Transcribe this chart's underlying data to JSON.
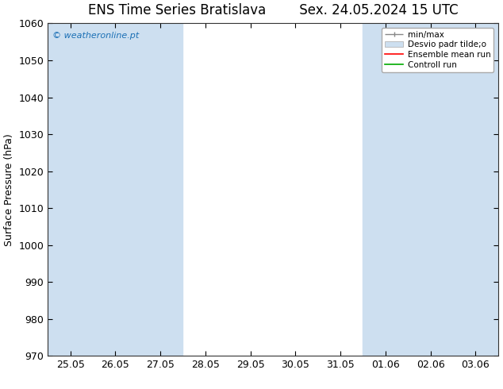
{
  "title_left": "ENS Time Series Bratislava",
  "title_right": "Sex. 24.05.2024 15 UTC",
  "ylabel": "Surface Pressure (hPa)",
  "ylim": [
    970,
    1060
  ],
  "yticks": [
    970,
    980,
    990,
    1000,
    1010,
    1020,
    1030,
    1040,
    1050,
    1060
  ],
  "xtick_labels": [
    "25.05",
    "26.05",
    "27.05",
    "28.05",
    "29.05",
    "30.05",
    "31.05",
    "01.06",
    "02.06",
    "03.06"
  ],
  "xtick_positions": [
    0,
    1,
    2,
    3,
    4,
    5,
    6,
    7,
    8,
    9
  ],
  "xlim": [
    -0.5,
    9.5
  ],
  "watermark": "© weatheronline.pt",
  "legend_labels": [
    "min/max",
    "Desvio padr tilde;o",
    "Ensemble mean run",
    "Controll run"
  ],
  "shaded_bands": [
    [
      0,
      1,
      2
    ],
    [
      7,
      8
    ],
    [
      9
    ]
  ],
  "band_color": "#cddff0",
  "background_color": "#ffffff",
  "title_fontsize": 12,
  "tick_fontsize": 9,
  "ylabel_fontsize": 9
}
